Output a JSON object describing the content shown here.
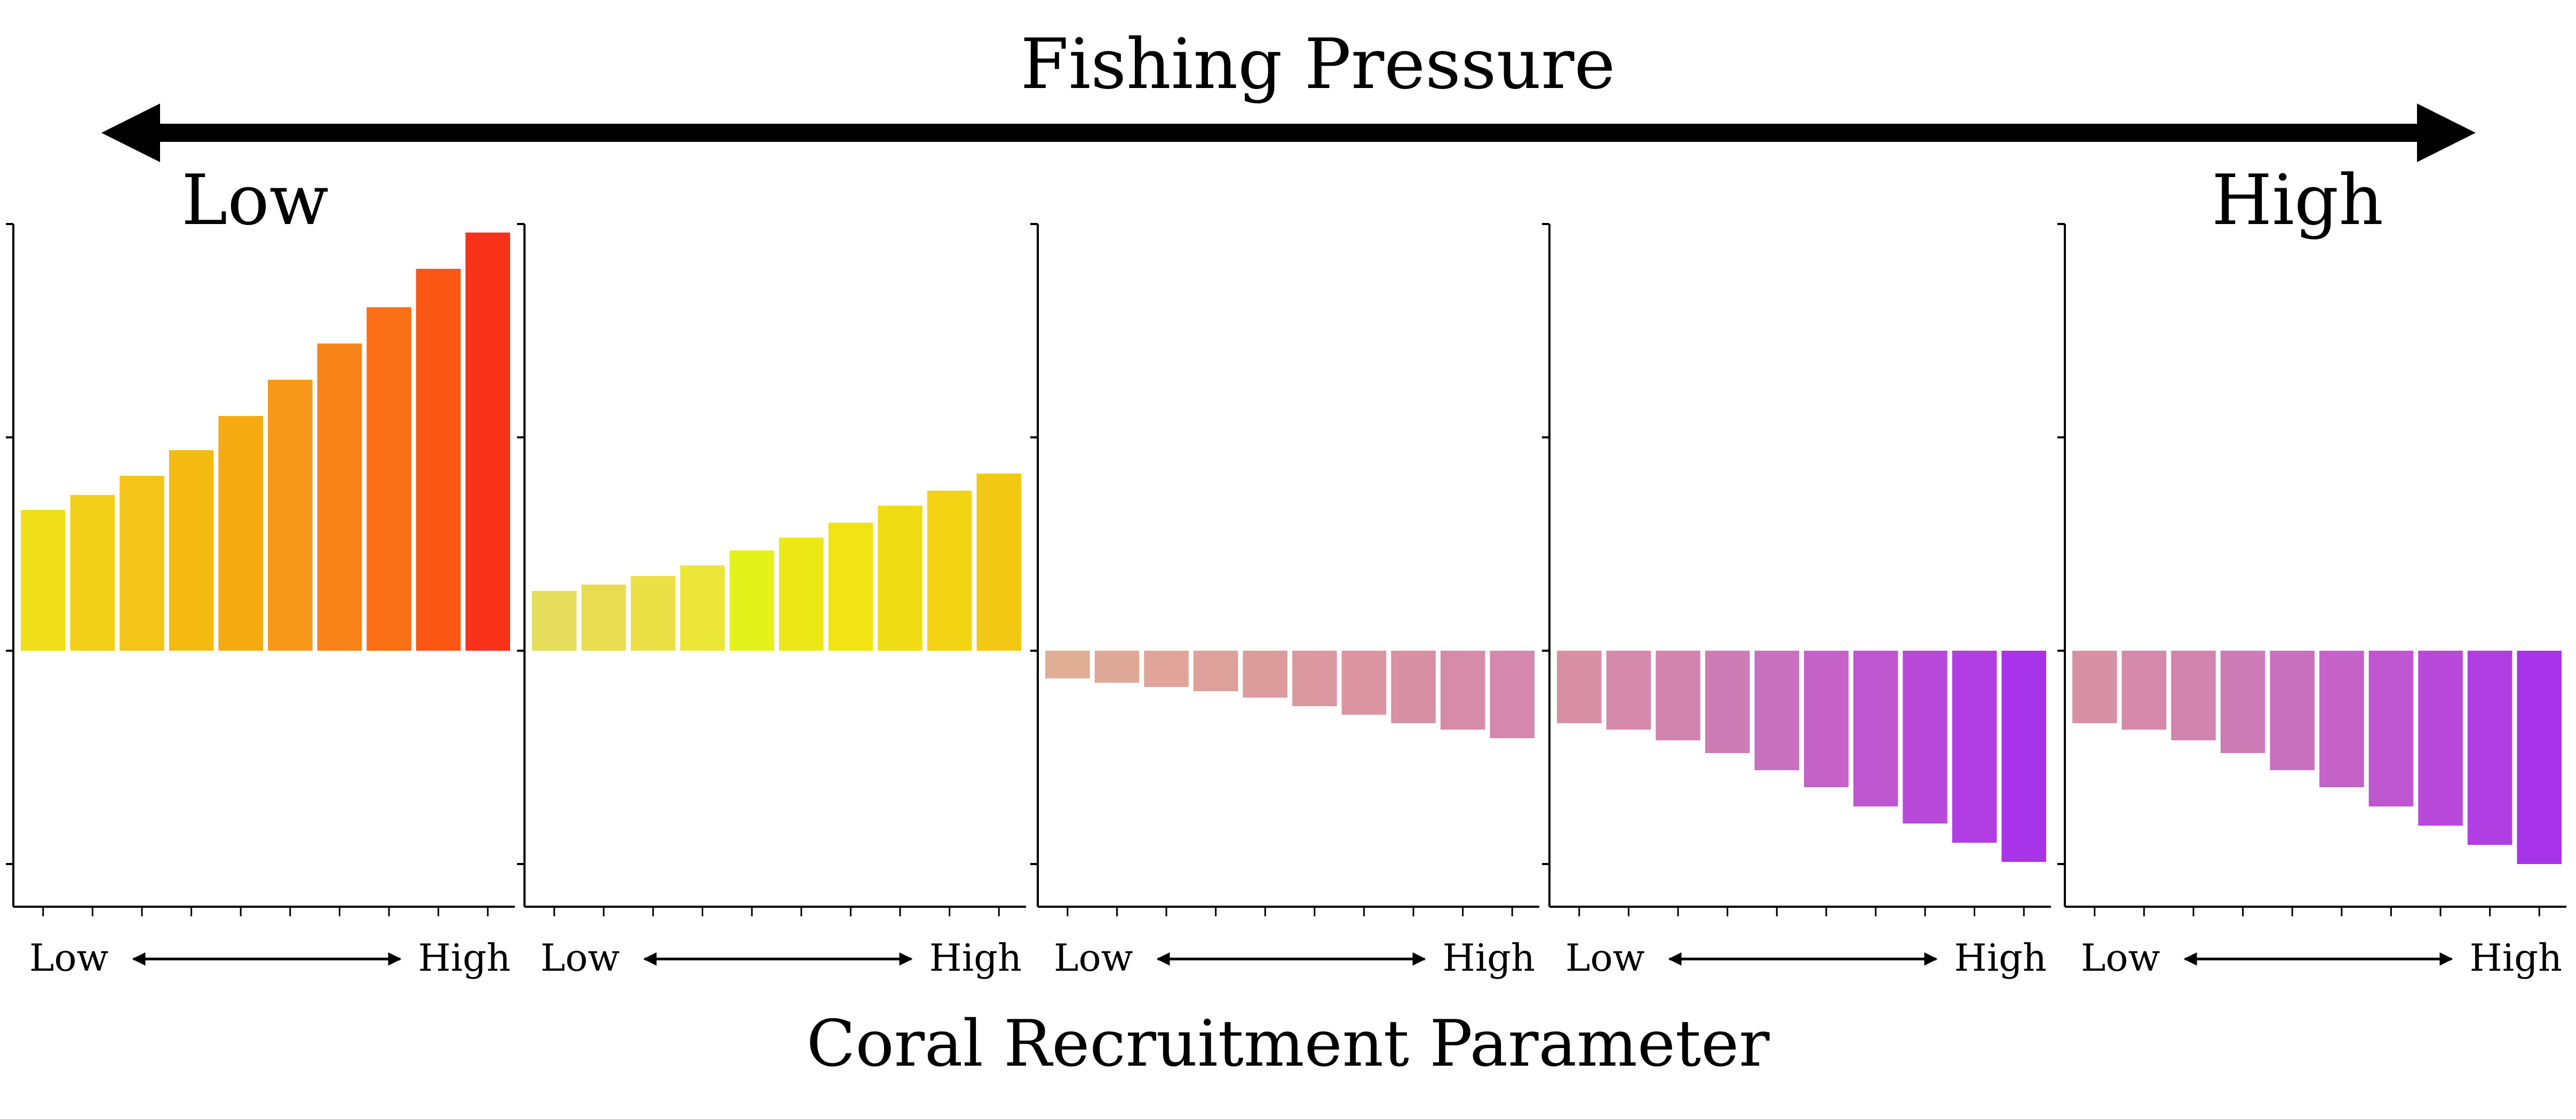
{
  "header": {
    "title": "Fishing Pressure",
    "low_label": "Low",
    "high_label": "High"
  },
  "footer": {
    "xlabel": "Coral Recruitment Parameter"
  },
  "chart_data": {
    "type": "bar",
    "panel_count": 5,
    "x_axis": {
      "low_label": "Low",
      "high_label": "High"
    },
    "ylim": [
      -1.2,
      2.0
    ],
    "yticks": [
      -1,
      0,
      1,
      2
    ],
    "grid": false,
    "legend": "none",
    "panels": [
      {
        "fishing_pressure_level": 1,
        "values": [
          0.66,
          0.73,
          0.82,
          0.94,
          1.1,
          1.27,
          1.44,
          1.61,
          1.79,
          1.96
        ],
        "colors": [
          "#F0DE1A",
          "#F2D01A",
          "#F4C418",
          "#F4BA12",
          "#F5AA12",
          "#F79818",
          "#F8841A",
          "#FA7016",
          "#FA5614",
          "#F8321A"
        ]
      },
      {
        "fishing_pressure_level": 2,
        "values": [
          0.28,
          0.31,
          0.35,
          0.4,
          0.47,
          0.53,
          0.6,
          0.68,
          0.75,
          0.83
        ],
        "colors": [
          "#E6DD5C",
          "#E8DD52",
          "#EAE046",
          "#ECE638",
          "#E4F21C",
          "#ECE818",
          "#F0E414",
          "#F0DC14",
          "#F2D414",
          "#F2C814"
        ]
      },
      {
        "fishing_pressure_level": 3,
        "values": [
          -0.13,
          -0.15,
          -0.17,
          -0.19,
          -0.22,
          -0.26,
          -0.3,
          -0.34,
          -0.37,
          -0.41
        ],
        "colors": [
          "#E0AE94",
          "#E0A896",
          "#E0A598",
          "#DEA09A",
          "#DC9C9C",
          "#DC98A0",
          "#DA94A2",
          "#D890A4",
          "#D68CA8",
          "#D488AC"
        ]
      },
      {
        "fishing_pressure_level": 4,
        "values": [
          -0.34,
          -0.37,
          -0.42,
          -0.48,
          -0.56,
          -0.64,
          -0.73,
          -0.81,
          -0.9,
          -0.99
        ],
        "colors": [
          "#D890A6",
          "#D68AAA",
          "#D284AE",
          "#CE7CB6",
          "#C870BE",
          "#C462C8",
          "#BE56D0",
          "#B84ADA",
          "#B03EE2",
          "#A834EA"
        ]
      },
      {
        "fishing_pressure_level": 5,
        "values": [
          -0.34,
          -0.37,
          -0.42,
          -0.48,
          -0.56,
          -0.64,
          -0.73,
          -0.82,
          -0.91,
          -1.0
        ],
        "colors": [
          "#D890A6",
          "#D68AAA",
          "#D284AE",
          "#CE7CB6",
          "#C870BE",
          "#C462C8",
          "#BE56D0",
          "#B84ADA",
          "#B03EE2",
          "#A834EA"
        ]
      }
    ]
  }
}
